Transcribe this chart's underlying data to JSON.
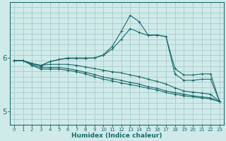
{
  "xlabel": "Humidex (Indice chaleur)",
  "background_color": "#d0eaea",
  "plot_bg_color": "#d0eaea",
  "line_color": "#1a6b6b",
  "grid_color": "#a8cccc",
  "x_values": [
    0,
    1,
    2,
    3,
    4,
    5,
    6,
    7,
    8,
    9,
    10,
    11,
    12,
    13,
    14,
    15,
    16,
    17,
    18,
    19,
    20,
    21,
    22,
    23
  ],
  "series": [
    [
      5.95,
      5.95,
      5.9,
      5.86,
      5.93,
      5.97,
      5.99,
      5.99,
      5.99,
      6.0,
      6.05,
      6.17,
      6.35,
      6.55,
      6.48,
      6.42,
      6.43,
      6.4,
      5.8,
      5.68,
      5.68,
      5.7,
      5.7,
      5.18
    ],
    [
      5.95,
      5.95,
      5.86,
      5.79,
      5.79,
      5.79,
      5.77,
      5.74,
      5.7,
      5.65,
      5.6,
      5.57,
      5.53,
      5.5,
      5.47,
      5.43,
      5.4,
      5.35,
      5.32,
      5.29,
      5.27,
      5.25,
      5.23,
      5.18
    ],
    [
      5.95,
      5.95,
      5.87,
      5.82,
      5.82,
      5.82,
      5.8,
      5.77,
      5.73,
      5.69,
      5.64,
      5.61,
      5.58,
      5.54,
      5.51,
      5.46,
      5.43,
      5.38,
      5.35,
      5.32,
      5.29,
      5.27,
      5.25,
      5.18
    ],
    [
      5.95,
      5.95,
      5.89,
      5.86,
      5.88,
      5.88,
      5.88,
      5.86,
      5.83,
      5.8,
      5.77,
      5.74,
      5.72,
      5.68,
      5.65,
      5.6,
      5.56,
      5.51,
      5.44,
      5.38,
      5.36,
      5.34,
      5.32,
      5.18
    ],
    [
      5.95,
      5.95,
      5.89,
      5.85,
      5.93,
      5.97,
      6.0,
      6.0,
      6.0,
      6.0,
      6.06,
      6.22,
      6.5,
      6.8,
      6.68,
      6.43,
      6.43,
      6.4,
      5.7,
      5.58,
      5.58,
      5.6,
      5.6,
      5.18
    ]
  ],
  "yticks": [
    5,
    6
  ],
  "ylim": [
    4.75,
    7.05
  ],
  "xlim": [
    -0.5,
    23.5
  ]
}
